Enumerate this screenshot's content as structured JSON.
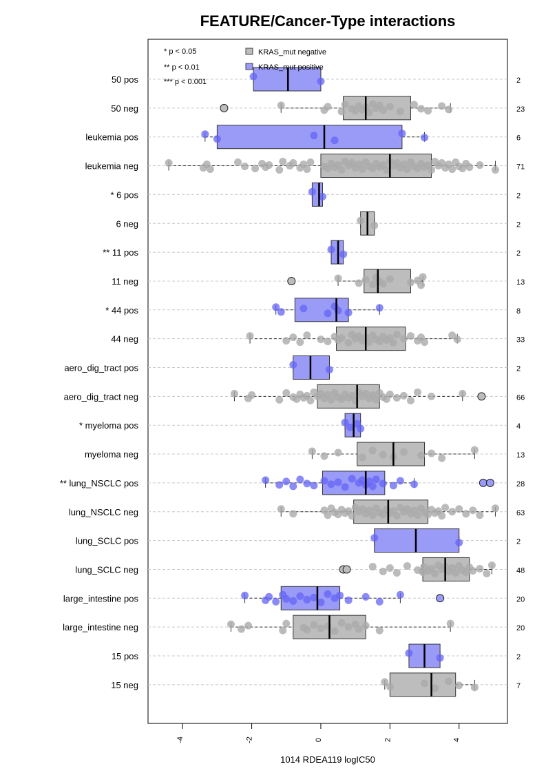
{
  "chart_data": {
    "type": "boxplot",
    "title": "FEATURE/Cancer-Type interactions",
    "xlabel": "1014 RDEA119 logIC50",
    "xlim": [
      -5.0,
      5.4
    ],
    "xticks": [
      -4,
      -2,
      0,
      2,
      4
    ],
    "xtick_labels": [
      "-4",
      "-2",
      "0",
      "2",
      "4"
    ],
    "grid": "horizontal dashed",
    "significance_legend": [
      "* p < 0.05",
      "** p < 0.01",
      "*** p < 0.001"
    ],
    "legend_position": "top-left",
    "series": [
      {
        "name": "KRAS_mut negative",
        "color": "#bdbdbd"
      },
      {
        "name": "KRAS_mut positive",
        "color": "#9a9af7"
      }
    ],
    "groups": [
      {
        "label": "50 pos",
        "kras": "positive",
        "n": "2",
        "whisker_low": -1.95,
        "q1": -1.95,
        "median": -0.95,
        "q3": 0.0,
        "whisker_high": 0.0,
        "points": [
          -1.95,
          0.0
        ],
        "outliers": []
      },
      {
        "label": "50 neg",
        "kras": "negative",
        "n": "23",
        "whisker_low": -1.15,
        "q1": 0.65,
        "median": 1.3,
        "q3": 2.6,
        "whisker_high": 3.75,
        "points": [
          -1.15,
          0.1,
          0.2,
          0.6,
          0.7,
          0.9,
          1.0,
          1.1,
          1.2,
          1.3,
          1.4,
          1.5,
          1.6,
          1.7,
          1.8,
          2.0,
          2.3,
          2.7,
          2.9,
          3.1,
          3.5,
          3.7
        ],
        "outliers": [
          -2.8
        ]
      },
      {
        "label": "leukemia pos",
        "kras": "positive",
        "n": "6",
        "whisker_low": -3.35,
        "q1": -3.0,
        "median": 0.1,
        "q3": 2.35,
        "whisker_high": 3.0,
        "points": [
          -3.35,
          -3.0,
          -0.2,
          0.4,
          2.35,
          3.0
        ],
        "outliers": []
      },
      {
        "label": "leukemia neg",
        "kras": "negative",
        "n": "71",
        "whisker_low": -4.4,
        "q1": 0.0,
        "median": 2.0,
        "q3": 3.2,
        "whisker_high": 5.05,
        "points": [
          -4.4,
          -3.4,
          -3.3,
          -3.2,
          -2.4,
          -2.2,
          -1.9,
          -1.7,
          -1.6,
          -1.5,
          -1.2,
          -1.1,
          -0.9,
          -0.8,
          -0.6,
          -0.5,
          -0.4,
          -0.3,
          0.1,
          0.2,
          0.3,
          0.4,
          0.5,
          0.6,
          0.7,
          0.8,
          0.9,
          1.0,
          1.1,
          1.2,
          1.3,
          1.4,
          1.5,
          1.6,
          1.7,
          1.8,
          1.9,
          2.0,
          2.1,
          2.2,
          2.3,
          2.4,
          2.5,
          2.6,
          2.7,
          2.8,
          2.9,
          3.0,
          3.1,
          3.2,
          3.3,
          3.4,
          3.5,
          3.6,
          3.7,
          3.8,
          3.9,
          4.0,
          4.1,
          4.2,
          4.3,
          4.6,
          5.05
        ],
        "outliers": []
      },
      {
        "label": "* 6 pos",
        "kras": "positive",
        "n": "2",
        "whisker_low": -0.25,
        "q1": -0.25,
        "median": -0.05,
        "q3": 0.05,
        "whisker_high": 0.05,
        "points": [
          -0.25,
          0.05
        ],
        "outliers": []
      },
      {
        "label": "6 neg",
        "kras": "negative",
        "n": "2",
        "whisker_low": 1.15,
        "q1": 1.15,
        "median": 1.35,
        "q3": 1.55,
        "whisker_high": 1.55,
        "points": [
          1.15,
          1.55
        ],
        "outliers": []
      },
      {
        "label": "** 11 pos",
        "kras": "positive",
        "n": "2",
        "whisker_low": 0.3,
        "q1": 0.3,
        "median": 0.5,
        "q3": 0.65,
        "whisker_high": 0.65,
        "points": [
          0.3,
          0.65
        ],
        "outliers": []
      },
      {
        "label": "11 neg",
        "kras": "negative",
        "n": "13",
        "whisker_low": 0.5,
        "q1": 1.25,
        "median": 1.65,
        "q3": 2.6,
        "whisker_high": 2.95,
        "points": [
          0.5,
          1.1,
          1.3,
          1.5,
          1.6,
          1.7,
          1.8,
          2.0,
          2.6,
          2.8,
          2.9,
          2.95
        ],
        "outliers": [
          -0.85
        ]
      },
      {
        "label": "* 44 pos",
        "kras": "positive",
        "n": "8",
        "whisker_low": -1.3,
        "q1": -0.75,
        "median": 0.45,
        "q3": 0.8,
        "whisker_high": 1.7,
        "points": [
          -1.3,
          -1.15,
          -0.5,
          0.2,
          0.4,
          0.5,
          0.8,
          1.7
        ],
        "outliers": []
      },
      {
        "label": "44 neg",
        "kras": "negative",
        "n": "33",
        "whisker_low": -2.05,
        "q1": 0.45,
        "median": 1.3,
        "q3": 2.45,
        "whisker_high": 3.95,
        "points": [
          -2.05,
          -1.0,
          -0.8,
          -0.6,
          -0.4,
          0.0,
          0.2,
          0.4,
          0.5,
          0.6,
          0.8,
          0.9,
          1.0,
          1.1,
          1.2,
          1.3,
          1.4,
          1.5,
          1.6,
          1.7,
          1.8,
          1.9,
          2.0,
          2.1,
          2.2,
          2.4,
          2.6,
          2.8,
          2.9,
          3.0,
          3.8,
          3.95
        ],
        "outliers": []
      },
      {
        "label": "aero_dig_tract pos",
        "kras": "positive",
        "n": "2",
        "whisker_low": -0.8,
        "q1": -0.8,
        "median": -0.3,
        "q3": 0.25,
        "whisker_high": 0.25,
        "points": [
          -0.8,
          0.25
        ],
        "outliers": []
      },
      {
        "label": "aero_dig_tract neg",
        "kras": "negative",
        "n": "66",
        "whisker_low": -2.5,
        "q1": -0.1,
        "median": 1.05,
        "q3": 1.7,
        "whisker_high": 4.1,
        "points": [
          -2.5,
          -2.1,
          -2.0,
          -1.2,
          -1.0,
          -0.8,
          -0.7,
          -0.6,
          -0.5,
          -0.4,
          -0.3,
          -0.2,
          -0.1,
          0.0,
          0.1,
          0.2,
          0.3,
          0.4,
          0.5,
          0.6,
          0.7,
          0.8,
          0.9,
          1.0,
          1.1,
          1.2,
          1.3,
          1.4,
          1.5,
          1.6,
          1.7,
          1.8,
          1.9,
          2.0,
          2.2,
          2.4,
          2.6,
          2.8,
          3.2,
          4.1
        ],
        "outliers": [
          4.65
        ]
      },
      {
        "label": "* myeloma pos",
        "kras": "positive",
        "n": "4",
        "whisker_low": 0.7,
        "q1": 0.7,
        "median": 0.95,
        "q3": 1.15,
        "whisker_high": 1.15,
        "points": [
          0.7,
          0.85,
          1.05,
          1.15
        ],
        "outliers": []
      },
      {
        "label": "myeloma neg",
        "kras": "negative",
        "n": "13",
        "whisker_low": -0.25,
        "q1": 1.05,
        "median": 2.1,
        "q3": 3.0,
        "whisker_high": 4.45,
        "points": [
          -0.25,
          0.1,
          0.5,
          1.2,
          1.5,
          1.8,
          2.1,
          2.4,
          2.9,
          3.2,
          3.5,
          4.45
        ],
        "outliers": []
      },
      {
        "label": "** lung_NSCLC pos",
        "kras": "positive",
        "n": "28",
        "whisker_low": -1.6,
        "q1": 0.05,
        "median": 1.3,
        "q3": 1.85,
        "whisker_high": 2.7,
        "points": [
          -1.6,
          -1.2,
          -1.0,
          -0.8,
          -0.6,
          -0.4,
          -0.2,
          0.1,
          0.3,
          0.5,
          0.7,
          0.9,
          1.1,
          1.2,
          1.3,
          1.4,
          1.5,
          1.6,
          1.8,
          2.1,
          2.3,
          2.7
        ],
        "outliers": [
          4.7,
          4.9
        ]
      },
      {
        "label": "lung_NSCLC neg",
        "kras": "negative",
        "n": "63",
        "whisker_low": -1.15,
        "q1": 0.95,
        "median": 1.95,
        "q3": 3.1,
        "whisker_high": 5.05,
        "points": [
          -1.15,
          -0.8,
          0.1,
          0.2,
          0.3,
          0.4,
          0.5,
          0.6,
          0.7,
          0.8,
          0.9,
          1.0,
          1.1,
          1.2,
          1.3,
          1.4,
          1.5,
          1.6,
          1.7,
          1.8,
          1.9,
          2.0,
          2.1,
          2.2,
          2.3,
          2.4,
          2.5,
          2.6,
          2.7,
          2.8,
          2.9,
          3.0,
          3.1,
          3.2,
          3.3,
          3.4,
          3.5,
          3.6,
          3.8,
          4.0,
          4.2,
          4.4,
          4.6,
          5.05
        ],
        "outliers": []
      },
      {
        "label": "lung_SCLC pos",
        "kras": "positive",
        "n": "2",
        "whisker_low": 1.55,
        "q1": 1.55,
        "median": 2.75,
        "q3": 4.0,
        "whisker_high": 4.0,
        "points": [
          1.55,
          4.0
        ],
        "outliers": []
      },
      {
        "label": "lung_SCLC neg",
        "kras": "negative",
        "n": "48",
        "whisker_low": 2.9,
        "q1": 2.95,
        "median": 3.6,
        "q3": 4.3,
        "whisker_high": 4.95,
        "points": [
          1.5,
          1.8,
          2.0,
          2.2,
          2.5,
          2.8,
          2.95,
          3.0,
          3.1,
          3.2,
          3.3,
          3.4,
          3.5,
          3.6,
          3.7,
          3.8,
          3.9,
          4.0,
          4.1,
          4.2,
          4.3,
          4.4,
          4.6,
          4.8,
          4.95
        ],
        "outliers": [
          0.65,
          0.75
        ]
      },
      {
        "label": "large_intestine pos",
        "kras": "positive",
        "n": "20",
        "whisker_low": -2.2,
        "q1": -1.15,
        "median": -0.1,
        "q3": 0.55,
        "whisker_high": 2.3,
        "points": [
          -2.2,
          -1.6,
          -1.5,
          -1.3,
          -1.1,
          -1.0,
          -0.8,
          -0.6,
          -0.4,
          -0.2,
          0.0,
          0.2,
          0.4,
          0.55,
          0.8,
          1.3,
          1.7,
          2.3
        ],
        "outliers": [
          3.45
        ]
      },
      {
        "label": "large_intestine neg",
        "kras": "negative",
        "n": "20",
        "whisker_low": -2.6,
        "q1": -0.8,
        "median": 0.25,
        "q3": 1.3,
        "whisker_high": 3.75,
        "points": [
          -2.6,
          -2.3,
          -2.1,
          -1.1,
          -1.0,
          -0.5,
          -0.4,
          -0.2,
          0.0,
          0.2,
          0.4,
          0.6,
          0.8,
          1.0,
          1.1,
          1.3,
          1.7,
          3.75
        ],
        "outliers": []
      },
      {
        "label": "15 pos",
        "kras": "positive",
        "n": "2",
        "whisker_low": 2.55,
        "q1": 2.55,
        "median": 3.0,
        "q3": 3.45,
        "whisker_high": 3.45,
        "points": [
          2.55,
          3.45
        ],
        "outliers": []
      },
      {
        "label": "15 neg",
        "kras": "negative",
        "n": "7",
        "whisker_low": 1.85,
        "q1": 2.0,
        "median": 3.2,
        "q3": 3.9,
        "whisker_high": 4.45,
        "points": [
          1.85,
          2.0,
          3.0,
          3.3,
          3.7,
          4.0,
          4.45
        ],
        "outliers": []
      }
    ]
  }
}
